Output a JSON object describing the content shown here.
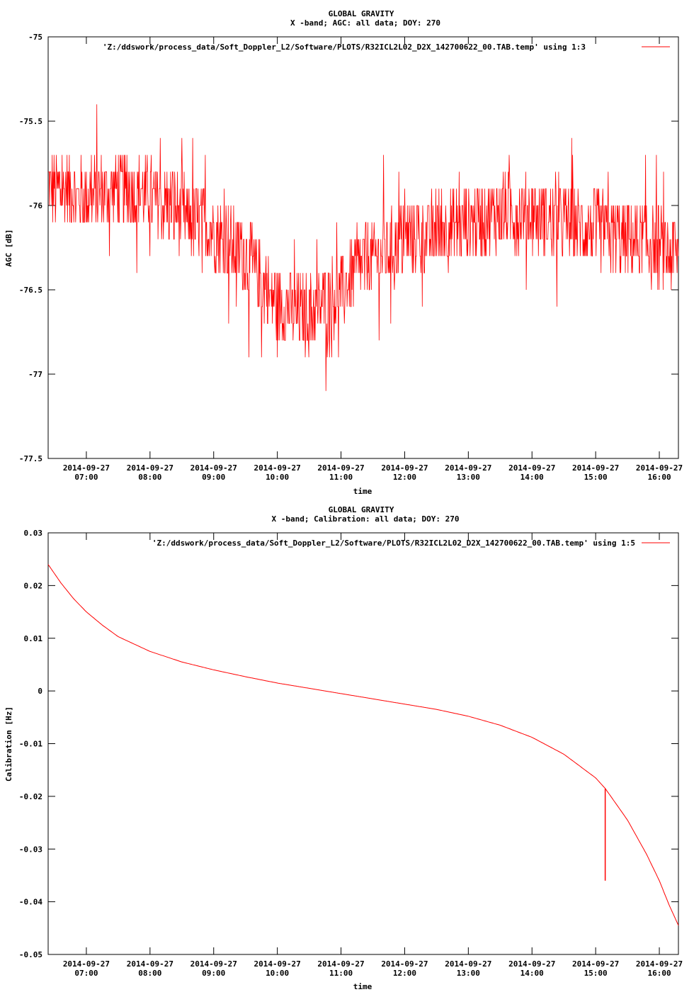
{
  "chart_data": [
    {
      "type": "line",
      "title": "GLOBAL GRAVITY",
      "subtitle": "X -band; AGC: all data; DOY: 270",
      "xlabel": "time",
      "ylabel": "AGC [dB]",
      "legend": "'Z:/ddswork/process_data/Soft_Doppler_L2/Software/PLOTS/R32ICL2L02_D2X_142700622_00.TAB.temp' using 1:3",
      "legend_position": "top-right",
      "ylim": [
        -77.5,
        -75
      ],
      "xlim": [
        6.4,
        16.3
      ],
      "yticks": [
        -77.5,
        -77,
        -76.5,
        -76,
        -75.5,
        -75
      ],
      "ytick_labels": [
        "-77.5",
        "-77",
        "-76.5",
        "-76",
        "-75.5",
        "-75"
      ],
      "xticks": [
        7,
        8,
        9,
        10,
        11,
        12,
        13,
        14,
        15,
        16
      ],
      "xtick_dates": [
        "2014-09-27",
        "2014-09-27",
        "2014-09-27",
        "2014-09-27",
        "2014-09-27",
        "2014-09-27",
        "2014-09-27",
        "2014-09-27",
        "2014-09-27",
        "2014-09-27"
      ],
      "xtick_times": [
        "07:00",
        "08:00",
        "09:00",
        "10:00",
        "11:00",
        "12:00",
        "13:00",
        "14:00",
        "15:00",
        "16:00"
      ],
      "color": "#ff0000",
      "series": [
        {
          "x": [
            6.4,
            6.6,
            7.0,
            7.5,
            8.0,
            8.5,
            9.0,
            9.5,
            10.0,
            10.5,
            11.0,
            11.5,
            12.0,
            12.5,
            13.0,
            13.5,
            14.0,
            14.5,
            15.0,
            15.5,
            16.0,
            16.3
          ],
          "values": [
            -75.9,
            -75.9,
            -75.95,
            -75.9,
            -75.95,
            -76.05,
            -76.15,
            -76.3,
            -76.6,
            -76.65,
            -76.5,
            -76.3,
            -76.2,
            -76.15,
            -76.1,
            -76.05,
            -76.05,
            -76.1,
            -76.15,
            -76.2,
            -76.25,
            -76.3
          ]
        }
      ]
    },
    {
      "type": "line",
      "title": "GLOBAL GRAVITY",
      "subtitle": "X -band; Calibration: all data; DOY: 270",
      "xlabel": "time",
      "ylabel": "Calibration [Hz]",
      "legend": "'Z:/ddswork/process_data/Soft_Doppler_L2/Software/PLOTS/R32ICL2L02_D2X_142700622_00.TAB.temp' using 1:5",
      "legend_position": "top-right",
      "ylim": [
        -0.05,
        0.03
      ],
      "xlim": [
        6.4,
        16.3
      ],
      "yticks": [
        -0.05,
        -0.04,
        -0.03,
        -0.02,
        -0.01,
        0,
        0.01,
        0.02,
        0.03
      ],
      "ytick_labels": [
        "-0.05",
        "-0.04",
        "-0.03",
        "-0.02",
        "-0.01",
        "0",
        "0.01",
        "0.02",
        "0.03"
      ],
      "xticks": [
        7,
        8,
        9,
        10,
        11,
        12,
        13,
        14,
        15,
        16
      ],
      "xtick_dates": [
        "2014-09-27",
        "2014-09-27",
        "2014-09-27",
        "2014-09-27",
        "2014-09-27",
        "2014-09-27",
        "2014-09-27",
        "2014-09-27",
        "2014-09-27",
        "2014-09-27"
      ],
      "xtick_times": [
        "07:00",
        "08:00",
        "09:00",
        "10:00",
        "11:00",
        "12:00",
        "13:00",
        "14:00",
        "15:00",
        "16:00"
      ],
      "color": "#ff0000",
      "series": [
        {
          "x": [
            6.4,
            6.6,
            6.8,
            7.0,
            7.25,
            7.5,
            8.0,
            8.5,
            9.0,
            9.5,
            10.0,
            10.5,
            11.0,
            11.5,
            12.0,
            12.5,
            13.0,
            13.5,
            14.0,
            14.5,
            15.0,
            15.15,
            15.5,
            15.8,
            16.0,
            16.15,
            16.3
          ],
          "values": [
            0.024,
            0.0205,
            0.0175,
            0.015,
            0.0125,
            0.0103,
            0.0075,
            0.0055,
            0.004,
            0.0027,
            0.0015,
            0.0005,
            -0.0005,
            -0.0015,
            -0.0025,
            -0.0035,
            -0.0048,
            -0.0065,
            -0.0088,
            -0.012,
            -0.0165,
            -0.0185,
            -0.0245,
            -0.031,
            -0.036,
            -0.0405,
            -0.0445
          ]
        }
      ],
      "spike": {
        "x": 15.15,
        "from": -0.0185,
        "to": -0.036
      }
    }
  ]
}
